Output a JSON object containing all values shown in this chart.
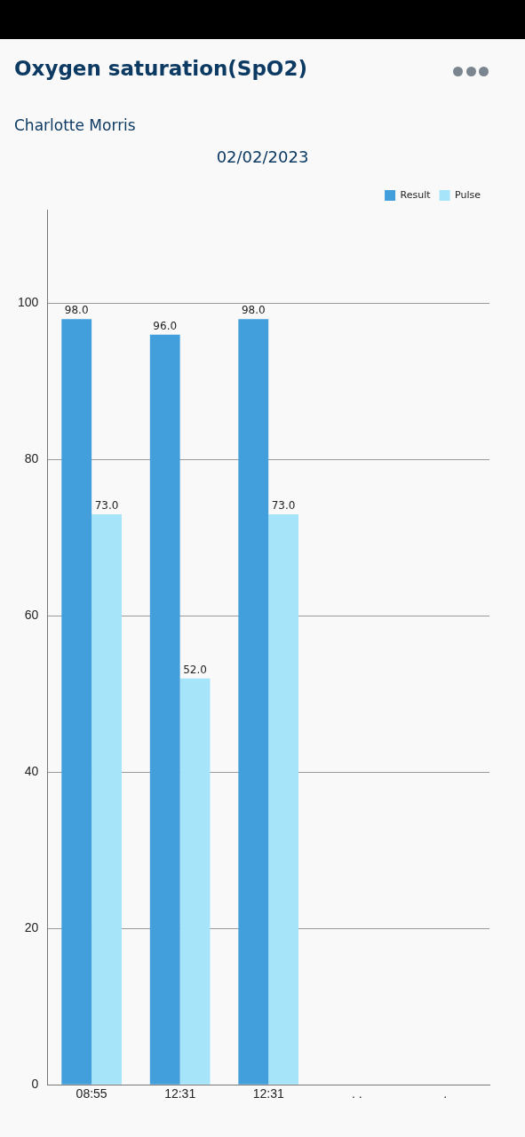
{
  "chart_data": {
    "type": "bar",
    "title": "Oxygen saturation(SpO2)",
    "subtitle": "02/02/2023",
    "annotations": [
      "Charlotte Morris"
    ],
    "categories": [
      "08:55",
      "12:31",
      "12:31",
      ". .",
      "."
    ],
    "series": [
      {
        "name": "Result",
        "color": "#439fdc",
        "values": [
          98,
          96,
          98,
          null,
          null
        ],
        "value_labels": [
          "98.0",
          "96.0",
          "98.0",
          null,
          null
        ]
      },
      {
        "name": "Pulse",
        "color": "#a6e4fa",
        "values": [
          73,
          52,
          73,
          null,
          null
        ],
        "value_labels": [
          "73.0",
          "52.0",
          "73.0",
          null,
          null
        ]
      }
    ],
    "ylim": [
      0,
      112
    ],
    "yticks": [
      0,
      20,
      40,
      60,
      80,
      100
    ],
    "grid": "y",
    "legend": "top right"
  }
}
